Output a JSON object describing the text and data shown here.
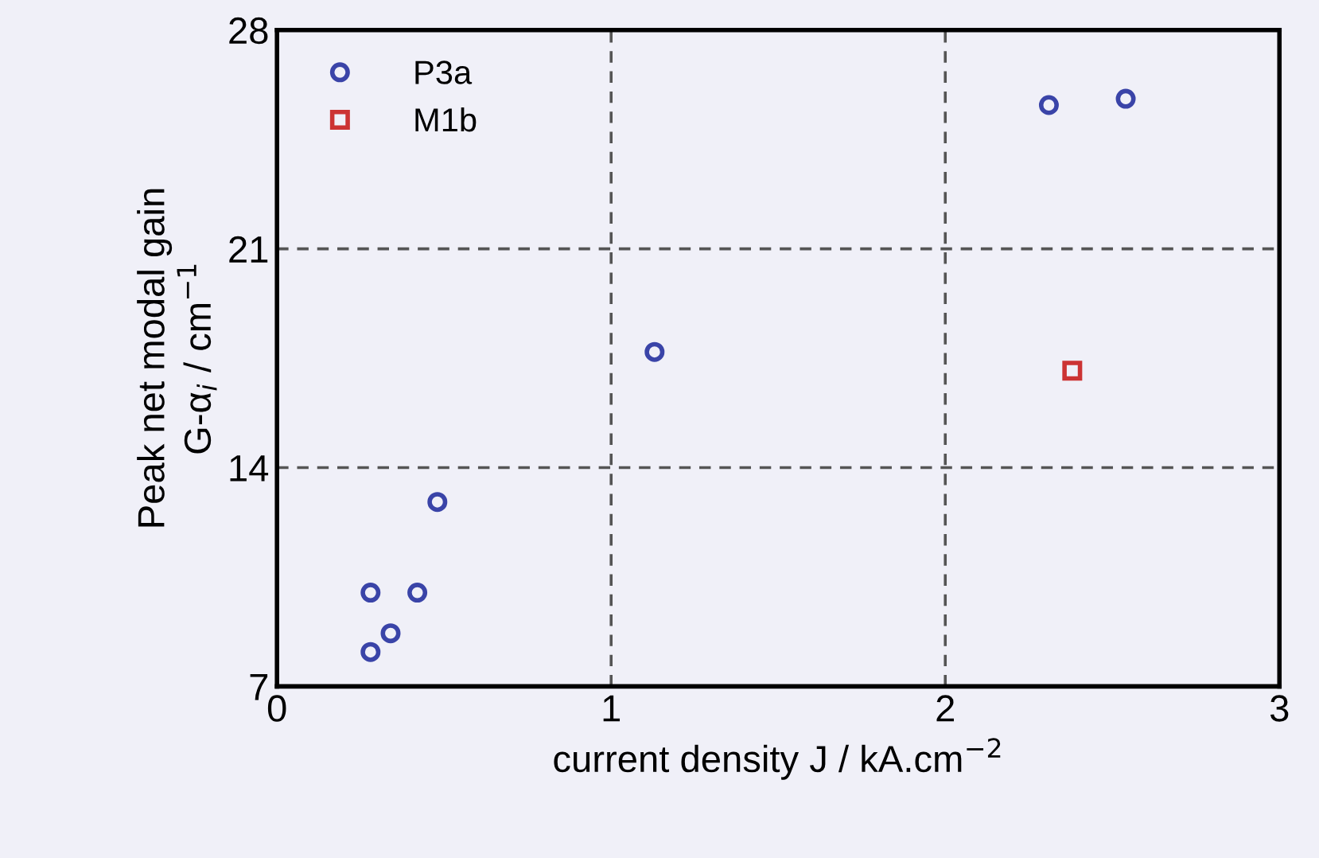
{
  "chart_data": {
    "type": "scatter",
    "xlabel": "current density J / kA.cm$^{−2}$",
    "ylabel": "Peak net modal gain\nG-α$_{i}$ / cm$^{−1}$",
    "xlim": [
      0,
      3
    ],
    "xticks": [
      0,
      1,
      2,
      3
    ],
    "ylim": [
      7,
      28
    ],
    "yticks": [
      7,
      14,
      21,
      28
    ],
    "grid": true,
    "legend": "top left",
    "series": [
      {
        "name": "P3a",
        "color": "#3a44a8",
        "marker": "circle",
        "x": [
          0.28,
          0.42,
          0.34,
          0.28,
          0.48,
          1.13,
          2.31,
          2.54
        ],
        "values": [
          10.0,
          10.0,
          8.7,
          8.1,
          12.9,
          17.7,
          25.6,
          25.8
        ]
      },
      {
        "name": "M1b",
        "color": "#cc3333",
        "marker": "square",
        "x": [
          2.38
        ],
        "values": [
          17.1
        ]
      }
    ]
  }
}
